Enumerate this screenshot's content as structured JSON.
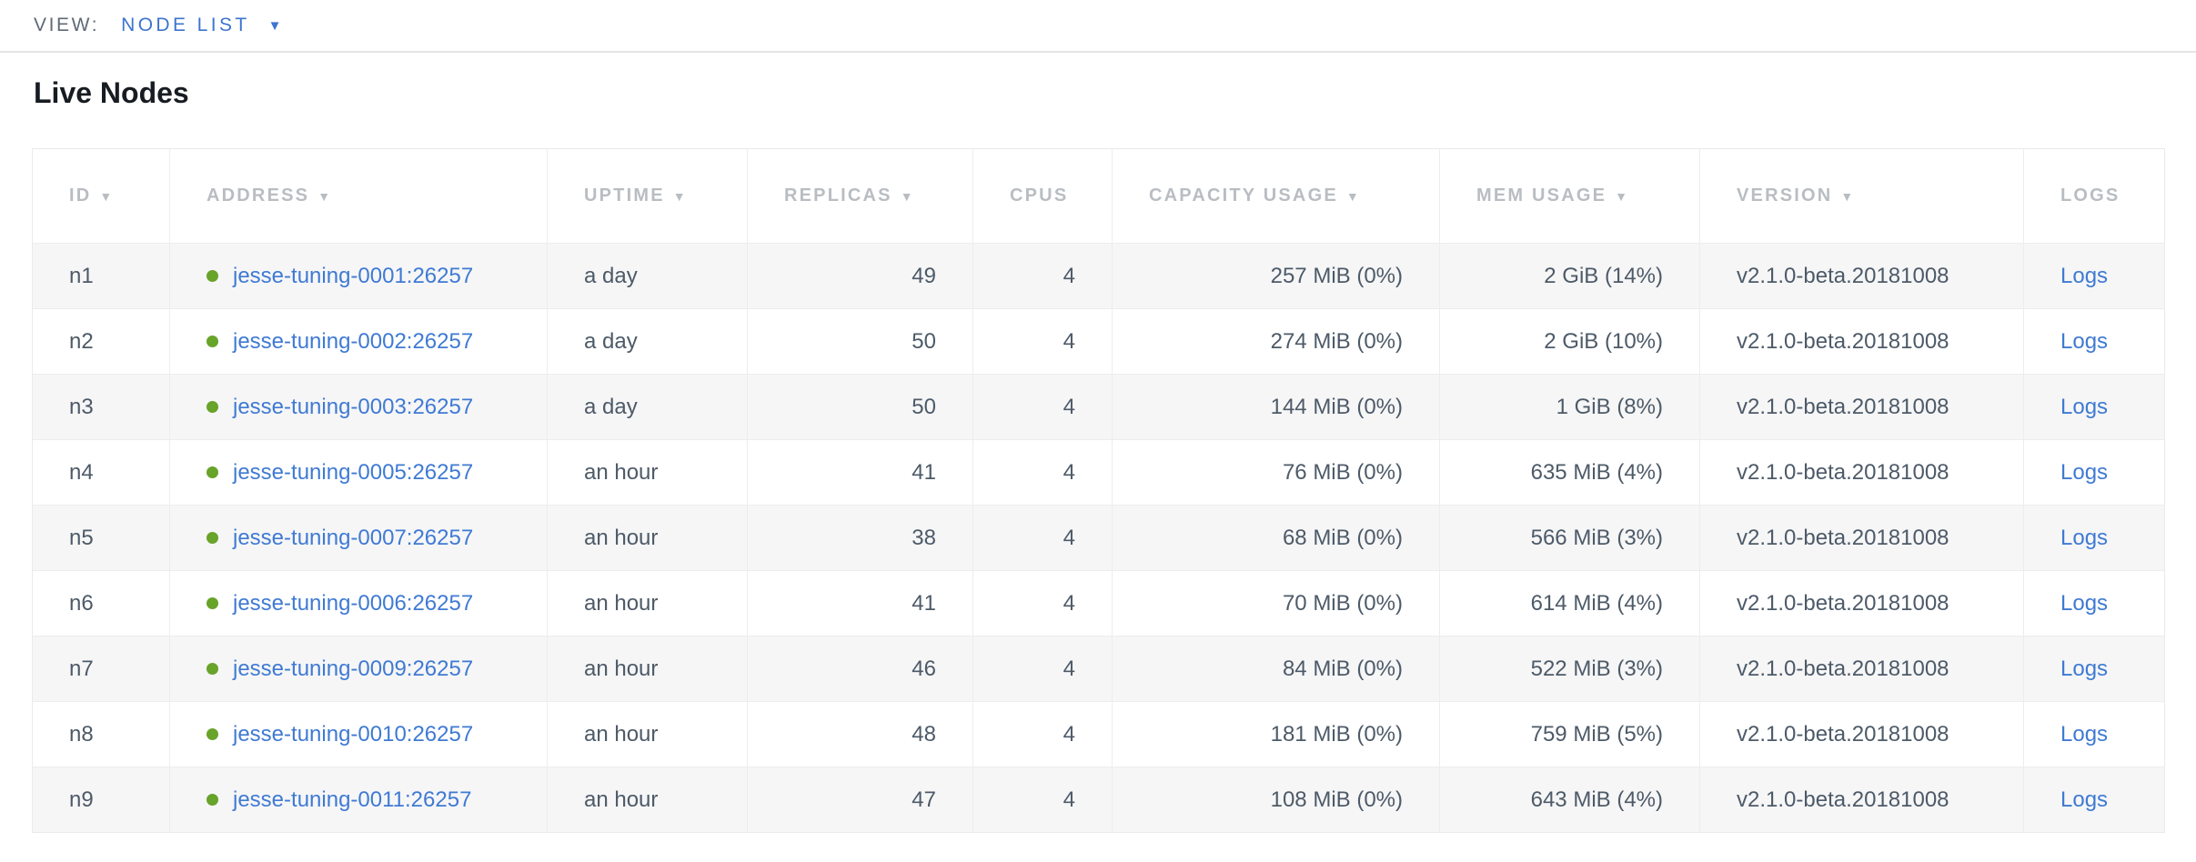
{
  "view_bar": {
    "label": "VIEW:",
    "selected": "NODE LIST"
  },
  "page": {
    "title": "Live Nodes"
  },
  "icons": {
    "dropdown_caret": "▼",
    "sort_caret": "▼",
    "status_dot": "live-status-dot"
  },
  "colors": {
    "link_blue": "#3f7ad3",
    "dropdown_blue": "#3d74cf",
    "live_green": "#68a32a",
    "header_gray": "#b9bdc2",
    "cell_text": "#4d5a68",
    "row_stripe": "#f6f6f7",
    "border": "#ededee"
  },
  "table": {
    "columns": [
      {
        "key": "id",
        "label": "ID",
        "sortable": true,
        "align": "left"
      },
      {
        "key": "address",
        "label": "ADDRESS",
        "sortable": true,
        "align": "left"
      },
      {
        "key": "uptime",
        "label": "UPTIME",
        "sortable": true,
        "align": "left"
      },
      {
        "key": "replicas",
        "label": "REPLICAS",
        "sortable": true,
        "align": "right"
      },
      {
        "key": "cpus",
        "label": "CPUS",
        "sortable": false,
        "align": "right"
      },
      {
        "key": "capacity",
        "label": "CAPACITY USAGE",
        "sortable": true,
        "align": "right"
      },
      {
        "key": "mem",
        "label": "MEM USAGE",
        "sortable": true,
        "align": "right"
      },
      {
        "key": "version",
        "label": "VERSION",
        "sortable": true,
        "align": "left"
      },
      {
        "key": "logs",
        "label": "LOGS",
        "sortable": false,
        "align": "left"
      }
    ],
    "rows": [
      {
        "id": "n1",
        "status": "live",
        "address": "jesse-tuning-0001:26257",
        "uptime": "a day",
        "replicas": "49",
        "cpus": "4",
        "capacity": "257 MiB (0%)",
        "mem": "2 GiB (14%)",
        "version": "v2.1.0-beta.20181008",
        "logs": "Logs"
      },
      {
        "id": "n2",
        "status": "live",
        "address": "jesse-tuning-0002:26257",
        "uptime": "a day",
        "replicas": "50",
        "cpus": "4",
        "capacity": "274 MiB (0%)",
        "mem": "2 GiB (10%)",
        "version": "v2.1.0-beta.20181008",
        "logs": "Logs"
      },
      {
        "id": "n3",
        "status": "live",
        "address": "jesse-tuning-0003:26257",
        "uptime": "a day",
        "replicas": "50",
        "cpus": "4",
        "capacity": "144 MiB (0%)",
        "mem": "1 GiB (8%)",
        "version": "v2.1.0-beta.20181008",
        "logs": "Logs"
      },
      {
        "id": "n4",
        "status": "live",
        "address": "jesse-tuning-0005:26257",
        "uptime": "an hour",
        "replicas": "41",
        "cpus": "4",
        "capacity": "76 MiB (0%)",
        "mem": "635 MiB (4%)",
        "version": "v2.1.0-beta.20181008",
        "logs": "Logs"
      },
      {
        "id": "n5",
        "status": "live",
        "address": "jesse-tuning-0007:26257",
        "uptime": "an hour",
        "replicas": "38",
        "cpus": "4",
        "capacity": "68 MiB (0%)",
        "mem": "566 MiB (3%)",
        "version": "v2.1.0-beta.20181008",
        "logs": "Logs"
      },
      {
        "id": "n6",
        "status": "live",
        "address": "jesse-tuning-0006:26257",
        "uptime": "an hour",
        "replicas": "41",
        "cpus": "4",
        "capacity": "70 MiB (0%)",
        "mem": "614 MiB (4%)",
        "version": "v2.1.0-beta.20181008",
        "logs": "Logs"
      },
      {
        "id": "n7",
        "status": "live",
        "address": "jesse-tuning-0009:26257",
        "uptime": "an hour",
        "replicas": "46",
        "cpus": "4",
        "capacity": "84 MiB (0%)",
        "mem": "522 MiB (3%)",
        "version": "v2.1.0-beta.20181008",
        "logs": "Logs"
      },
      {
        "id": "n8",
        "status": "live",
        "address": "jesse-tuning-0010:26257",
        "uptime": "an hour",
        "replicas": "48",
        "cpus": "4",
        "capacity": "181 MiB (0%)",
        "mem": "759 MiB (5%)",
        "version": "v2.1.0-beta.20181008",
        "logs": "Logs"
      },
      {
        "id": "n9",
        "status": "live",
        "address": "jesse-tuning-0011:26257",
        "uptime": "an hour",
        "replicas": "47",
        "cpus": "4",
        "capacity": "108 MiB (0%)",
        "mem": "643 MiB (4%)",
        "version": "v2.1.0-beta.20181008",
        "logs": "Logs"
      }
    ]
  }
}
